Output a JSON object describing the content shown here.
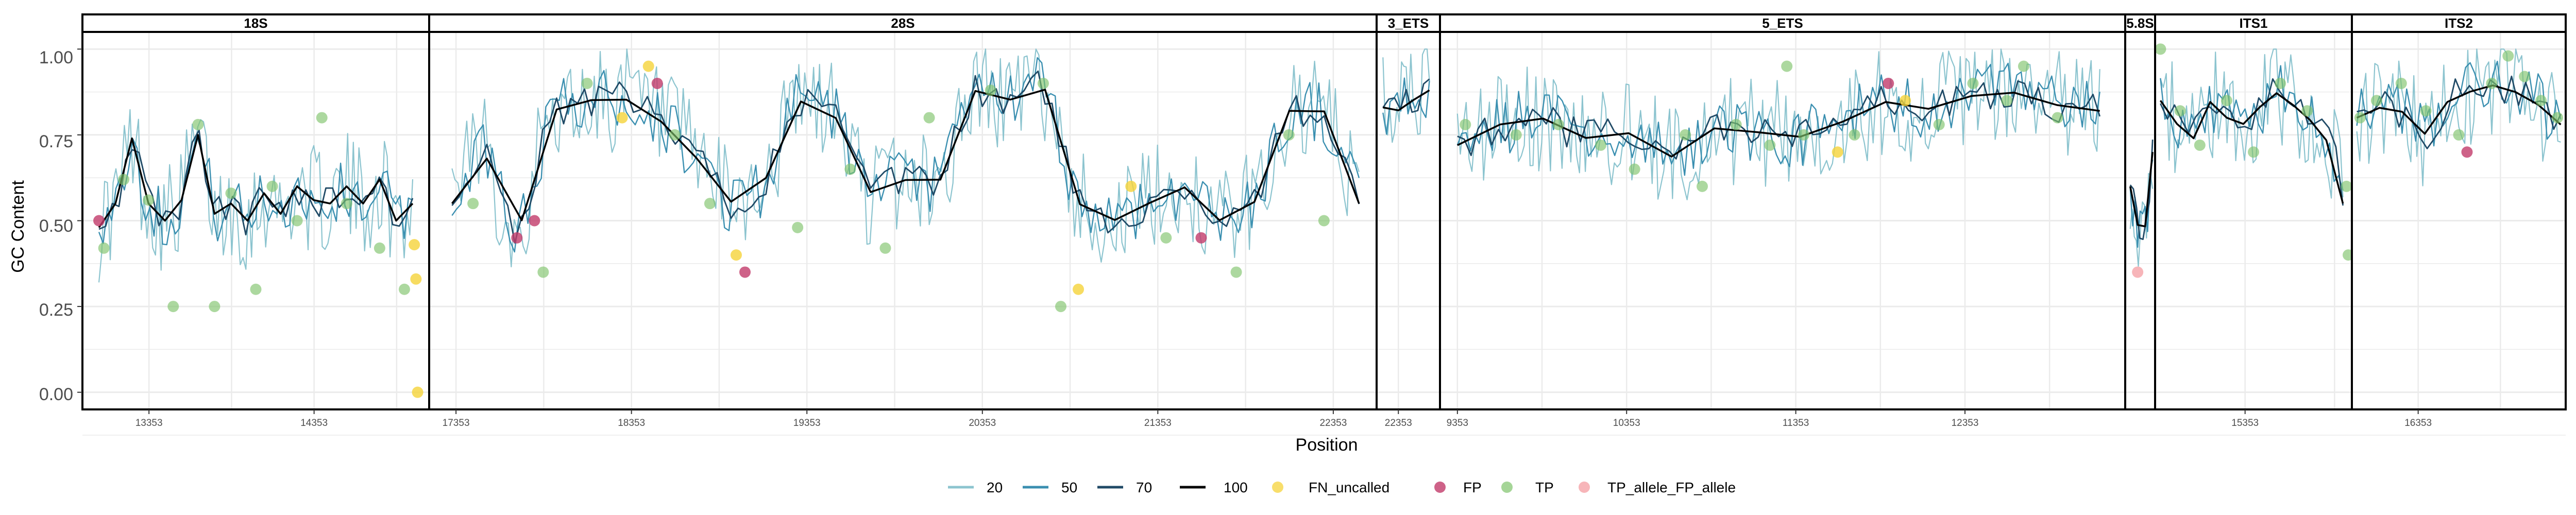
{
  "chart_data": {
    "type": "line",
    "xlabel": "Position",
    "ylabel": "GC Content",
    "ylim": [
      -0.05,
      1.05
    ],
    "yticks": [
      {
        "v": 0.0,
        "label": "0.00"
      },
      {
        "v": 0.25,
        "label": "0.25"
      },
      {
        "v": 0.5,
        "label": "0.50"
      },
      {
        "v": 0.75,
        "label": "0.75"
      },
      {
        "v": 1.0,
        "label": "1.00"
      }
    ],
    "grid": true,
    "legend_position": "bottom",
    "colors": {
      "s20": "#8cc4cf",
      "s50": "#3a8fb0",
      "s70": "#204a66",
      "s100": "#000000",
      "FN_uncalled": "#f5d33a",
      "FP": "#c23b6a",
      "TP": "#7fc36b",
      "TP_allele_FP_allele": "#f5a3a8"
    },
    "line_legend": [
      {
        "key": "s20",
        "label": "20"
      },
      {
        "key": "s50",
        "label": "50"
      },
      {
        "key": "s70",
        "label": "70"
      },
      {
        "key": "s100",
        "label": "100"
      }
    ],
    "point_legend": [
      {
        "key": "FN_uncalled",
        "label": "FN_uncalled"
      },
      {
        "key": "FP",
        "label": "FP"
      },
      {
        "key": "TP",
        "label": "TP"
      },
      {
        "key": "TP_allele_FP_allele",
        "label": "TP_allele_FP_allele"
      }
    ],
    "panels": [
      {
        "name": "18S",
        "xlim": [
          12950,
          15050
        ],
        "ticks": [
          {
            "v": 13353,
            "label": "13353"
          },
          {
            "v": 14353,
            "label": "14353"
          }
        ],
        "gridlines": [
          13353,
          13853,
          14353,
          14853
        ],
        "trend": [
          [
            13050,
            0.48
          ],
          [
            13150,
            0.55
          ],
          [
            13250,
            0.74
          ],
          [
            13350,
            0.55
          ],
          [
            13450,
            0.5
          ],
          [
            13550,
            0.56
          ],
          [
            13650,
            0.75
          ],
          [
            13750,
            0.52
          ],
          [
            13850,
            0.55
          ],
          [
            13950,
            0.5
          ],
          [
            14050,
            0.58
          ],
          [
            14150,
            0.52
          ],
          [
            14250,
            0.6
          ],
          [
            14350,
            0.56
          ],
          [
            14450,
            0.55
          ],
          [
            14550,
            0.6
          ],
          [
            14650,
            0.55
          ],
          [
            14750,
            0.62
          ],
          [
            14850,
            0.5
          ],
          [
            14950,
            0.55
          ]
        ],
        "points": [
          [
            13050,
            0.5,
            "FP"
          ],
          [
            13080,
            0.42,
            "TP"
          ],
          [
            13200,
            0.62,
            "TP"
          ],
          [
            13350,
            0.56,
            "TP"
          ],
          [
            13500,
            0.25,
            "TP"
          ],
          [
            13650,
            0.78,
            "TP"
          ],
          [
            13750,
            0.25,
            "TP"
          ],
          [
            13850,
            0.58,
            "TP"
          ],
          [
            14000,
            0.3,
            "TP"
          ],
          [
            14100,
            0.6,
            "TP"
          ],
          [
            14250,
            0.5,
            "TP"
          ],
          [
            14400,
            0.8,
            "TP"
          ],
          [
            14550,
            0.55,
            "TP"
          ],
          [
            14750,
            0.42,
            "TP"
          ],
          [
            14900,
            0.3,
            "TP"
          ],
          [
            14960,
            0.43,
            "FN_uncalled"
          ],
          [
            14970,
            0.33,
            "FN_uncalled"
          ],
          [
            14980,
            0.0,
            "FN_uncalled"
          ]
        ]
      },
      {
        "name": "28S",
        "xlim": [
          17200,
          22600
        ],
        "ticks": [
          {
            "v": 17353,
            "label": "17353"
          },
          {
            "v": 18353,
            "label": "18353"
          },
          {
            "v": 19353,
            "label": "19353"
          },
          {
            "v": 20353,
            "label": "20353"
          },
          {
            "v": 21353,
            "label": "21353"
          },
          {
            "v": 22353,
            "label": "22353"
          }
        ],
        "gridlines": [
          17353,
          17853,
          18353,
          18853,
          19353,
          19853,
          20353,
          20853,
          21353,
          21853,
          22353
        ],
        "trend": [
          [
            17330,
            0.55
          ],
          [
            17500,
            0.72
          ],
          [
            17700,
            0.45
          ],
          [
            17900,
            0.82
          ],
          [
            18100,
            0.85
          ],
          [
            18300,
            0.86
          ],
          [
            18500,
            0.8
          ],
          [
            18700,
            0.7
          ],
          [
            18900,
            0.55
          ],
          [
            19100,
            0.6
          ],
          [
            19300,
            0.85
          ],
          [
            19500,
            0.82
          ],
          [
            19700,
            0.58
          ],
          [
            19900,
            0.62
          ],
          [
            20100,
            0.6
          ],
          [
            20300,
            0.88
          ],
          [
            20500,
            0.85
          ],
          [
            20700,
            0.9
          ],
          [
            20900,
            0.55
          ],
          [
            21100,
            0.5
          ],
          [
            21300,
            0.55
          ],
          [
            21500,
            0.6
          ],
          [
            21700,
            0.5
          ],
          [
            21900,
            0.55
          ],
          [
            22100,
            0.82
          ],
          [
            22300,
            0.82
          ],
          [
            22500,
            0.55
          ]
        ],
        "points": [
          [
            17450,
            0.55,
            "TP"
          ],
          [
            17700,
            0.45,
            "FP"
          ],
          [
            17800,
            0.5,
            "FP"
          ],
          [
            17850,
            0.35,
            "TP"
          ],
          [
            18100,
            0.9,
            "TP"
          ],
          [
            18300,
            0.8,
            "FN_uncalled"
          ],
          [
            18450,
            0.95,
            "FN_uncalled"
          ],
          [
            18500,
            0.9,
            "FP"
          ],
          [
            18600,
            0.75,
            "TP"
          ],
          [
            18800,
            0.55,
            "TP"
          ],
          [
            18950,
            0.4,
            "FN_uncalled"
          ],
          [
            19000,
            0.35,
            "FP"
          ],
          [
            19300,
            0.48,
            "TP"
          ],
          [
            19600,
            0.65,
            "TP"
          ],
          [
            19800,
            0.42,
            "TP"
          ],
          [
            20050,
            0.8,
            "TP"
          ],
          [
            20400,
            0.88,
            "TP"
          ],
          [
            20700,
            0.9,
            "TP"
          ],
          [
            20800,
            0.25,
            "TP"
          ],
          [
            20900,
            0.3,
            "FN_uncalled"
          ],
          [
            21200,
            0.6,
            "FN_uncalled"
          ],
          [
            21400,
            0.45,
            "TP"
          ],
          [
            21600,
            0.45,
            "FP"
          ],
          [
            21800,
            0.35,
            "TP"
          ],
          [
            22100,
            0.75,
            "TP"
          ],
          [
            22300,
            0.5,
            "TP"
          ]
        ]
      },
      {
        "name": "3_ETS",
        "xlim": [
          22250,
          22550
        ],
        "ticks": [
          {
            "v": 22353,
            "label": "22353"
          }
        ],
        "gridlines": [
          22353
        ],
        "trend": [
          [
            22280,
            0.83
          ],
          [
            22350,
            0.82
          ],
          [
            22420,
            0.85
          ],
          [
            22500,
            0.88
          ]
        ],
        "points": []
      },
      {
        "name": "5_ETS",
        "xlim": [
          9250,
          13300
        ],
        "ticks": [
          {
            "v": 9353,
            "label": "9353"
          },
          {
            "v": 10353,
            "label": "10353"
          },
          {
            "v": 11353,
            "label": "11353"
          },
          {
            "v": 12353,
            "label": "12353"
          }
        ],
        "gridlines": [
          9353,
          9853,
          10353,
          10853,
          11353,
          11853,
          12353,
          12853
        ],
        "trend": [
          [
            9353,
            0.72
          ],
          [
            9600,
            0.78
          ],
          [
            9850,
            0.8
          ],
          [
            10100,
            0.74
          ],
          [
            10350,
            0.76
          ],
          [
            10600,
            0.68
          ],
          [
            10850,
            0.77
          ],
          [
            11100,
            0.76
          ],
          [
            11350,
            0.74
          ],
          [
            11600,
            0.78
          ],
          [
            11850,
            0.85
          ],
          [
            12100,
            0.82
          ],
          [
            12350,
            0.86
          ],
          [
            12600,
            0.88
          ],
          [
            12850,
            0.84
          ],
          [
            13150,
            0.82
          ]
        ],
        "points": [
          [
            9400,
            0.78,
            "TP"
          ],
          [
            9700,
            0.75,
            "TP"
          ],
          [
            9950,
            0.78,
            "TP"
          ],
          [
            10200,
            0.72,
            "TP"
          ],
          [
            10400,
            0.65,
            "TP"
          ],
          [
            10700,
            0.75,
            "TP"
          ],
          [
            10800,
            0.6,
            "TP"
          ],
          [
            11000,
            0.78,
            "TP"
          ],
          [
            11200,
            0.72,
            "TP"
          ],
          [
            11300,
            0.95,
            "TP"
          ],
          [
            11400,
            0.75,
            "TP"
          ],
          [
            11600,
            0.7,
            "FN_uncalled"
          ],
          [
            11700,
            0.75,
            "TP"
          ],
          [
            11900,
            0.9,
            "FP"
          ],
          [
            12000,
            0.85,
            "FN_uncalled"
          ],
          [
            12200,
            0.78,
            "TP"
          ],
          [
            12400,
            0.9,
            "TP"
          ],
          [
            12600,
            0.85,
            "TP"
          ],
          [
            12700,
            0.95,
            "TP"
          ],
          [
            12900,
            0.8,
            "TP"
          ]
        ]
      },
      {
        "name": "5.8S",
        "xlim": [
          14900,
          15020
        ],
        "ticks": [],
        "gridlines": [],
        "trend": [
          [
            14920,
            0.6
          ],
          [
            14960,
            0.45
          ],
          [
            14990,
            0.5
          ],
          [
            15010,
            0.7
          ]
        ],
        "points": [
          [
            14950,
            0.35,
            "TP_allele_FP_allele"
          ]
        ]
      },
      {
        "name": "ITS1",
        "xlim": [
          14850,
          15950
        ],
        "ticks": [
          {
            "v": 15353,
            "label": "15353"
          }
        ],
        "gridlines": [
          14853,
          15353,
          15853
        ],
        "trend": [
          [
            14880,
            0.85
          ],
          [
            14950,
            0.8
          ],
          [
            15050,
            0.72
          ],
          [
            15150,
            0.85
          ],
          [
            15250,
            0.8
          ],
          [
            15353,
            0.78
          ],
          [
            15450,
            0.84
          ],
          [
            15550,
            0.88
          ],
          [
            15650,
            0.82
          ],
          [
            15750,
            0.78
          ],
          [
            15850,
            0.7
          ],
          [
            15900,
            0.55
          ]
        ],
        "points": [
          [
            14880,
            1.0,
            "TP"
          ],
          [
            14990,
            0.82,
            "TP"
          ],
          [
            15100,
            0.72,
            "TP"
          ],
          [
            15250,
            0.85,
            "TP"
          ],
          [
            15400,
            0.7,
            "TP"
          ],
          [
            15550,
            0.9,
            "TP"
          ],
          [
            15700,
            0.82,
            "TP"
          ],
          [
            15920,
            0.6,
            "TP"
          ],
          [
            15930,
            0.4,
            "TP"
          ]
        ]
      },
      {
        "name": "ITS2",
        "xlim": [
          15950,
          17250
        ],
        "ticks": [
          {
            "v": 16353,
            "label": "16353"
          }
        ],
        "gridlines": [
          15853,
          16353,
          16853
        ],
        "trend": [
          [
            15980,
            0.8
          ],
          [
            16100,
            0.83
          ],
          [
            16250,
            0.82
          ],
          [
            16400,
            0.75
          ],
          [
            16550,
            0.86
          ],
          [
            16700,
            0.88
          ],
          [
            16850,
            0.9
          ],
          [
            17000,
            0.86
          ],
          [
            17150,
            0.82
          ],
          [
            17220,
            0.78
          ]
        ],
        "points": [
          [
            16000,
            0.8,
            "TP"
          ],
          [
            16100,
            0.85,
            "TP"
          ],
          [
            16250,
            0.9,
            "TP"
          ],
          [
            16400,
            0.82,
            "TP"
          ],
          [
            16600,
            0.75,
            "TP"
          ],
          [
            16650,
            0.7,
            "FP"
          ],
          [
            16800,
            0.9,
            "TP"
          ],
          [
            16900,
            0.98,
            "TP"
          ],
          [
            17000,
            0.92,
            "TP"
          ],
          [
            17100,
            0.85,
            "TP"
          ],
          [
            17200,
            0.8,
            "TP"
          ]
        ]
      }
    ]
  }
}
